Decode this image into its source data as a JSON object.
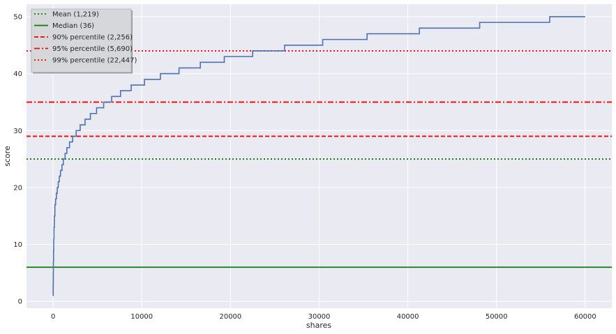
{
  "chart_data": {
    "type": "line",
    "title": "",
    "xlabel": "shares",
    "ylabel": "score",
    "xlim": [
      -3000,
      63000
    ],
    "ylim": [
      -1.2,
      52.2
    ],
    "xticks": [
      0,
      10000,
      20000,
      30000,
      40000,
      50000,
      60000
    ],
    "yticks": [
      0,
      10,
      20,
      30,
      40,
      50
    ],
    "grid": true,
    "legend_position": "top-left",
    "series": [
      {
        "name": "",
        "color": "#4c72b0",
        "style": "step",
        "points": [
          [
            0,
            1
          ],
          [
            10,
            3
          ],
          [
            20,
            5
          ],
          [
            30,
            7
          ],
          [
            50,
            9
          ],
          [
            70,
            11
          ],
          [
            100,
            13
          ],
          [
            140,
            15
          ],
          [
            200,
            17
          ],
          [
            280,
            18
          ],
          [
            370,
            19
          ],
          [
            470,
            20
          ],
          [
            580,
            21
          ],
          [
            700,
            22
          ],
          [
            830,
            23
          ],
          [
            1000,
            24
          ],
          [
            1150,
            25
          ],
          [
            1350,
            26
          ],
          [
            1550,
            27
          ],
          [
            1850,
            28
          ],
          [
            2200,
            29
          ],
          [
            2600,
            30
          ],
          [
            3050,
            31
          ],
          [
            3600,
            32
          ],
          [
            4200,
            33
          ],
          [
            4900,
            34
          ],
          [
            5700,
            35
          ],
          [
            6600,
            36
          ],
          [
            7600,
            37
          ],
          [
            8800,
            38
          ],
          [
            10300,
            39
          ],
          [
            12100,
            40
          ],
          [
            14200,
            41
          ],
          [
            16600,
            42
          ],
          [
            19300,
            43
          ],
          [
            22500,
            44
          ],
          [
            26100,
            45
          ],
          [
            30400,
            46
          ],
          [
            35400,
            47
          ],
          [
            41300,
            48
          ],
          [
            48100,
            49
          ],
          [
            56000,
            50
          ],
          [
            60000,
            50
          ]
        ]
      }
    ],
    "reference_lines": [
      {
        "label": "Mean (1,219)",
        "y": 25,
        "color": "#008000",
        "dash": "dotted"
      },
      {
        "label": "Median (36)",
        "y": 6,
        "color": "#008000",
        "dash": "solid"
      },
      {
        "label": "90% percentile (2,256)",
        "y": 29,
        "color": "#ff0000",
        "dash": "dashed"
      },
      {
        "label": "95% percentile (5,690)",
        "y": 35,
        "color": "#ff0000",
        "dash": "dashdot"
      },
      {
        "label": "99% percentile (22,447)",
        "y": 44,
        "color": "#ff0000",
        "dash": "dotted"
      }
    ]
  },
  "colors": {
    "plot_background": "#eaeaf2",
    "grid": "#ffffff",
    "legend_background": "#d5d7db"
  }
}
